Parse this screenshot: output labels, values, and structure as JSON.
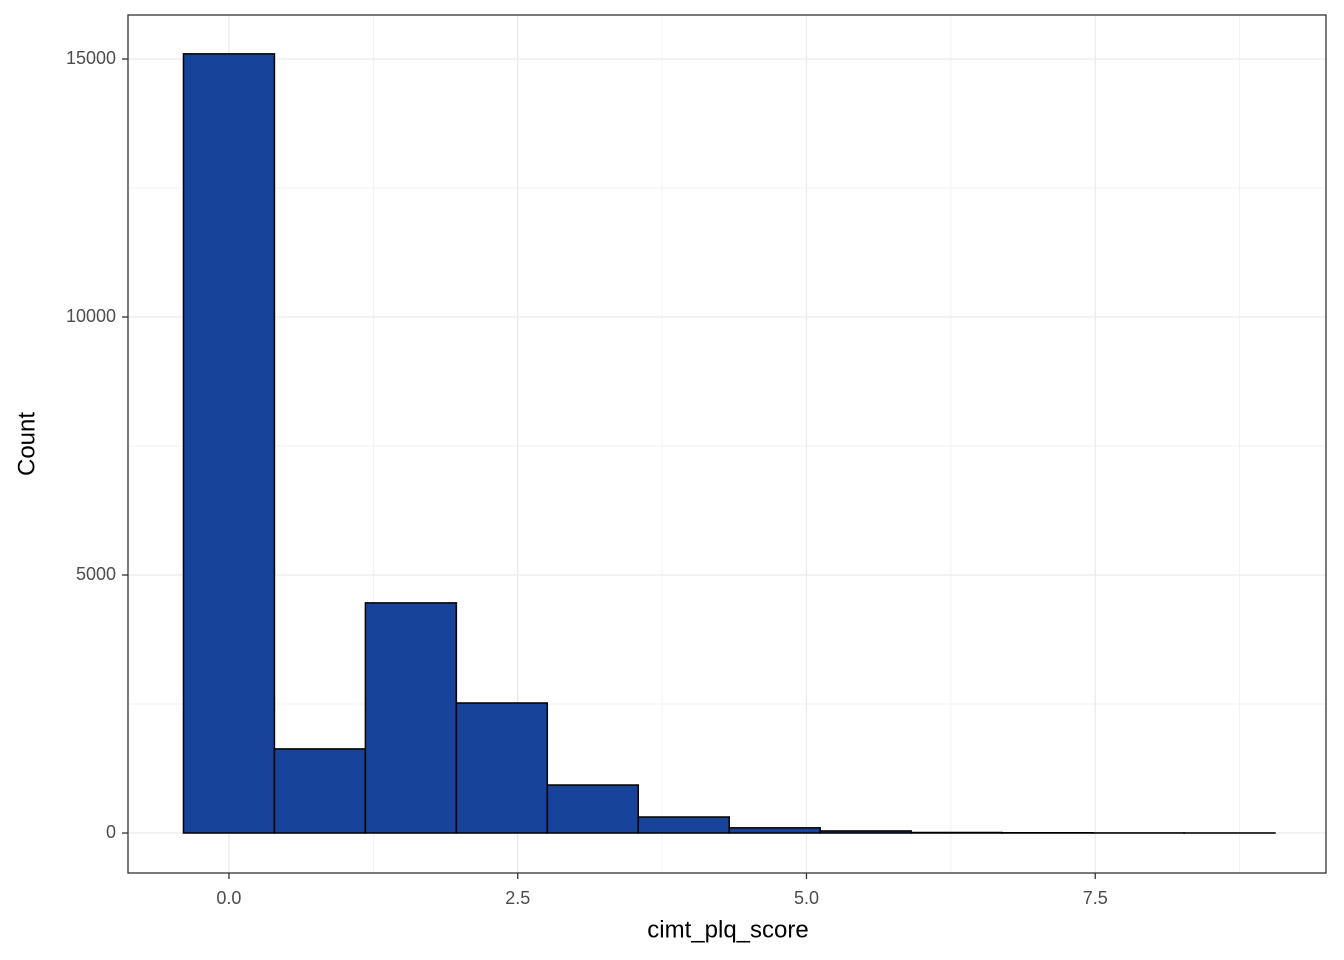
{
  "chart_data": {
    "type": "histogram",
    "x_label": "cimt_plq_score",
    "y_label": "Count",
    "bins": [
      -0.39375,
      0.39375,
      1.18125,
      1.96875,
      2.75625,
      3.54375,
      4.33125,
      5.11875,
      5.90625,
      6.69375,
      7.48125,
      8.26875,
      9.05625
    ],
    "values": [
      15100,
      1630,
      4460,
      2520,
      930,
      310,
      100,
      40,
      10,
      5,
      2,
      1
    ],
    "color": "#18439a",
    "edge_color": "#000000",
    "xlim": [
      -0.874,
      9.498
    ],
    "ylim": [
      -775,
      15853
    ],
    "xticks": [
      {
        "value": 0,
        "label": "0.0"
      },
      2.5,
      {
        "value": 5,
        "label": "5.0"
      },
      7.5
    ],
    "yticks": [
      0,
      5000,
      10000,
      15000
    ],
    "x_minor_grid": [
      1.25,
      3.75,
      6.25,
      8.75
    ],
    "y_minor_grid": [
      2500,
      7500,
      12500
    ],
    "grid": true
  }
}
